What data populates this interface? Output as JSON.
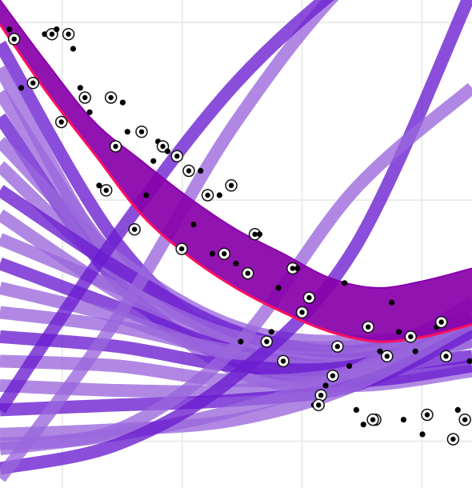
{
  "chart_data": {
    "type": "line",
    "title": "",
    "xlabel": "",
    "ylabel": "",
    "xlim": [
      0,
      10
    ],
    "ylim": [
      0,
      10
    ],
    "grid": true,
    "x_gridlines": [
      1.32,
      3.86,
      6.4,
      8.94
    ],
    "y_gridlines": [
      0.96,
      5.9,
      9.54
    ],
    "colors": {
      "background": "#ffffff",
      "grid": "#ebebeb",
      "fit_band": "#8800aa",
      "fit_edge": "#ff1060",
      "draws_light": "#9a66dd",
      "draws_dark": "#6a1ccf",
      "point_fill": "#000000",
      "point_ring": "#ffffff"
    },
    "series": [
      {
        "kind": "fit_band",
        "x": [
          0,
          1,
          2,
          3,
          4,
          5,
          6,
          7,
          8,
          9,
          10
        ],
        "y_upper": [
          10.0,
          8.7,
          7.5,
          6.7,
          5.95,
          5.3,
          4.8,
          4.3,
          4.1,
          4.25,
          4.5
        ],
        "y_lower": [
          9.5,
          8.1,
          6.85,
          5.6,
          4.75,
          4.1,
          3.6,
          3.2,
          3.0,
          3.1,
          3.35
        ]
      },
      {
        "kind": "posterior_draws",
        "x": [
          0,
          10
        ],
        "draws": [
          {
            "y": [
              9.1,
              5.0,
              2.9,
              2.5,
              2.7
            ]
          },
          {
            "y": [
              8.6,
              4.4,
              2.4,
              2.1,
              2.4
            ]
          },
          {
            "y": [
              8.1,
              4.6,
              3.0,
              2.7,
              3.0
            ]
          },
          {
            "y": [
              7.6,
              4.2,
              2.6,
              2.2,
              2.5
            ]
          },
          {
            "y": [
              7.1,
              4.7,
              3.3,
              3.0,
              3.3
            ]
          },
          {
            "y": [
              6.6,
              4.4,
              3.1,
              2.7,
              3.2
            ]
          },
          {
            "y": [
              6.1,
              4.5,
              3.2,
              2.8,
              3.4
            ]
          },
          {
            "y": [
              5.6,
              4.0,
              2.8,
              2.5,
              3.0
            ]
          },
          {
            "y": [
              5.1,
              4.1,
              3.1,
              2.9,
              3.5
            ]
          },
          {
            "y": [
              4.6,
              3.7,
              2.8,
              2.5,
              3.3
            ]
          },
          {
            "y": [
              4.1,
              3.5,
              2.7,
              2.5,
              3.3
            ]
          },
          {
            "y": [
              3.6,
              3.3,
              2.8,
              2.7,
              3.4
            ]
          },
          {
            "y": [
              3.1,
              2.9,
              2.5,
              2.5,
              3.3
            ]
          },
          {
            "y": [
              2.6,
              2.5,
              2.2,
              2.4,
              3.4
            ]
          },
          {
            "y": [
              2.1,
              2.0,
              2.0,
              2.3,
              3.3
            ]
          },
          {
            "y": [
              1.6,
              1.7,
              1.8,
              2.1,
              3.2
            ]
          },
          {
            "y": [
              1.1,
              1.2,
              1.4,
              2.1,
              3.4
            ]
          },
          {
            "y": [
              0.8,
              1.1,
              1.6,
              2.4,
              3.8
            ]
          },
          {
            "y": [
              0.4,
              0.9,
              2.3,
              4.9,
              10.2
            ]
          },
          {
            "y": [
              0.9,
              1.2,
              2.9,
              6.1,
              8.2
            ]
          },
          {
            "y": [
              0.2,
              3.5,
              7.5,
              10.5,
              12.0
            ]
          },
          {
            "y": [
              1.6,
              5.2,
              8.3,
              10.5,
              12.2
            ]
          }
        ]
      },
      {
        "kind": "observed_points",
        "points": [
          [
            0.2,
            9.4
          ],
          [
            0.3,
            9.2
          ],
          [
            0.45,
            8.2
          ],
          [
            0.7,
            8.3
          ],
          [
            0.95,
            9.3
          ],
          [
            1.1,
            9.3
          ],
          [
            1.2,
            9.4
          ],
          [
            1.45,
            9.3
          ],
          [
            1.55,
            9.0
          ],
          [
            1.3,
            7.5
          ],
          [
            1.7,
            8.2
          ],
          [
            1.8,
            8.0
          ],
          [
            1.9,
            7.7
          ],
          [
            2.35,
            8.0
          ],
          [
            2.6,
            7.9
          ],
          [
            2.45,
            7.0
          ],
          [
            2.7,
            7.3
          ],
          [
            3.0,
            7.3
          ],
          [
            3.35,
            7.1
          ],
          [
            3.45,
            7.0
          ],
          [
            3.55,
            6.9
          ],
          [
            3.75,
            6.8
          ],
          [
            3.25,
            6.7
          ],
          [
            4.0,
            6.5
          ],
          [
            4.25,
            6.5
          ],
          [
            4.4,
            6.0
          ],
          [
            4.65,
            6.0
          ],
          [
            4.9,
            6.2
          ],
          [
            2.1,
            6.2
          ],
          [
            2.25,
            6.1
          ],
          [
            3.1,
            6.0
          ],
          [
            2.85,
            5.3
          ],
          [
            4.1,
            5.4
          ],
          [
            3.85,
            4.9
          ],
          [
            4.5,
            4.8
          ],
          [
            4.75,
            4.8
          ],
          [
            5.0,
            4.6
          ],
          [
            5.4,
            5.2
          ],
          [
            5.5,
            5.2
          ],
          [
            5.25,
            4.4
          ],
          [
            5.9,
            4.1
          ],
          [
            6.2,
            4.5
          ],
          [
            6.3,
            4.5
          ],
          [
            6.55,
            3.9
          ],
          [
            7.3,
            4.2
          ],
          [
            6.4,
            3.6
          ],
          [
            8.3,
            3.8
          ],
          [
            7.8,
            3.3
          ],
          [
            8.45,
            3.2
          ],
          [
            8.7,
            3.1
          ],
          [
            9.25,
            3.3
          ],
          [
            9.35,
            3.4
          ],
          [
            5.1,
            3.0
          ],
          [
            5.65,
            3.0
          ],
          [
            5.75,
            3.2
          ],
          [
            7.15,
            2.9
          ],
          [
            8.05,
            2.8
          ],
          [
            8.2,
            2.7
          ],
          [
            8.8,
            2.8
          ],
          [
            9.45,
            2.7
          ],
          [
            9.95,
            2.6
          ],
          [
            6.0,
            2.6
          ],
          [
            7.4,
            2.5
          ],
          [
            7.05,
            2.3
          ],
          [
            6.9,
            2.1
          ],
          [
            6.8,
            1.9
          ],
          [
            6.65,
            1.7
          ],
          [
            6.75,
            1.7
          ],
          [
            7.55,
            1.6
          ],
          [
            7.95,
            1.4
          ],
          [
            7.7,
            1.3
          ],
          [
            7.9,
            1.4
          ],
          [
            8.55,
            1.4
          ],
          [
            9.05,
            1.5
          ],
          [
            9.7,
            1.6
          ],
          [
            9.85,
            1.4
          ],
          [
            8.95,
            1.1
          ],
          [
            9.6,
            1.0
          ]
        ]
      }
    ]
  }
}
